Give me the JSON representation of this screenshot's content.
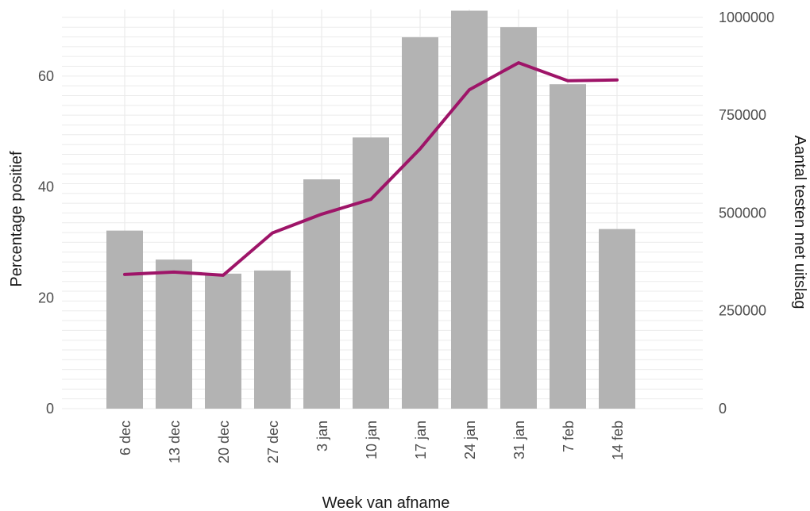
{
  "chart_data": {
    "type": "bar",
    "title": "",
    "xlabel": "Week van afname",
    "ylabel_left": "Percentage positief",
    "ylabel_right": "Aantal testen met uitslag",
    "categories": [
      "6 dec",
      "13 dec",
      "20 dec",
      "27 dec",
      "3 jan",
      "10 jan",
      "17 jan",
      "24 jan",
      "31 jan",
      "7 feb",
      "14 feb"
    ],
    "bars": {
      "axis": "right",
      "values": [
        455000,
        381000,
        345000,
        353000,
        586000,
        693000,
        949000,
        1017000,
        975000,
        829000,
        459000
      ]
    },
    "line": {
      "axis": "right",
      "values": [
        343000,
        349000,
        341000,
        449000,
        497000,
        535000,
        664000,
        815000,
        884000,
        838000,
        840000
      ]
    },
    "ylim_left": [
      0,
      72
    ],
    "ylim_right": [
      0,
      1020000
    ],
    "left_ticks": [
      0,
      20,
      40,
      60
    ],
    "right_ticks": [
      "0",
      "250000",
      "500000",
      "750000",
      "1000000"
    ],
    "right_tick_values": [
      0,
      250000,
      500000,
      750000,
      1000000
    ],
    "grid": true,
    "colors": {
      "bar": "#b3b3b3",
      "line": "#9e1468",
      "grid": "#ebebeb"
    }
  }
}
